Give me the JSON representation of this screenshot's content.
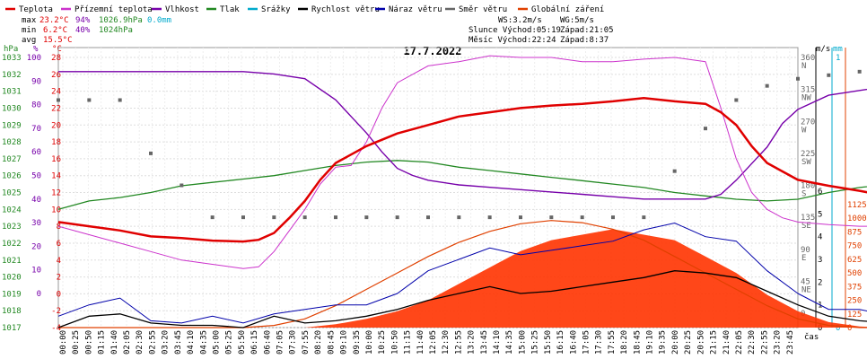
{
  "chart_data": {
    "type": "line",
    "title": "17.7.2022",
    "legend": [
      {
        "name": "Teplota",
        "color": "#e00000"
      },
      {
        "name": "Přízemní teplota",
        "color": "#cc33cc"
      },
      {
        "name": "Vlhkost",
        "color": "#7700aa"
      },
      {
        "name": "Tlak",
        "color": "#228822"
      },
      {
        "name": "Srážky",
        "color": "#00aacc"
      },
      {
        "name": "Rychlost větru",
        "color": "#000000"
      },
      {
        "name": "Náraz větru",
        "color": "#0000aa"
      },
      {
        "name": "Směr větru",
        "color": "#666666"
      },
      {
        "name": "Globální záření",
        "color": "#e04000"
      }
    ],
    "stats": {
      "max": {
        "label": "max",
        "temp": "23.2°C",
        "hum": "94%",
        "press": "1026.9hPa",
        "rain": "0.0mm"
      },
      "min": {
        "label": "min",
        "temp": "6.2°C",
        "hum": "40%",
        "press": "1024hPa"
      },
      "avg": {
        "label": "avg",
        "temp": "15.5°C"
      }
    },
    "info": {
      "ws": "WS:3.2m/s",
      "wg": "WG:5m/s",
      "sun": "Slunce Východ:05:19",
      "sun_set": "Západ:21:05",
      "moon": "Měsíc Východ:22:24",
      "moon_set": "Západ:8:37"
    },
    "axes": {
      "hpa": {
        "unit": "hPa",
        "ticks": [
          "1033",
          "1032",
          "1031",
          "1030",
          "1029",
          "1028",
          "1027",
          "1026",
          "1025",
          "1024",
          "1023",
          "1022",
          "1021",
          "1020",
          "1019",
          "1018",
          "1017"
        ]
      },
      "pct": {
        "unit": "%",
        "ticks": [
          "100",
          "90",
          "80",
          "70",
          "60",
          "50",
          "40",
          "30",
          "20",
          "10",
          "0"
        ]
      },
      "temp": {
        "unit": "°C",
        "ticks": [
          "28",
          "26",
          "24",
          "22",
          "20",
          "18",
          "16",
          "14",
          "12",
          "10",
          "8",
          "6",
          "4",
          "2",
          "0",
          "-2",
          "-4"
        ]
      },
      "wind": {
        "unit": "m/s",
        "ticks": [
          "6",
          "5",
          "4",
          "3",
          "2",
          "1",
          "0"
        ]
      },
      "rain": {
        "unit": "mm",
        "ticks": [
          "1",
          "0"
        ]
      },
      "dir": {
        "ticks": [
          "360",
          "315",
          "270",
          "225",
          "180",
          "135",
          "90",
          "45",
          "0"
        ],
        "labels": [
          "N",
          "NW",
          "W",
          "SW",
          "S",
          "SE",
          "E",
          "NE",
          ""
        ]
      },
      "rad": {
        "ticks": [
          "1125",
          "1000",
          "875",
          "750",
          "625",
          "500",
          "375",
          "250",
          "125",
          "0"
        ]
      },
      "time_label": "čas",
      "time_ticks": [
        "00:00",
        "00:25",
        "00:50",
        "01:15",
        "01:40",
        "02:05",
        "02:30",
        "02:55",
        "03:20",
        "03:45",
        "04:10",
        "04:35",
        "05:00",
        "05:25",
        "05:50",
        "06:15",
        "06:40",
        "07:05",
        "07:30",
        "07:55",
        "08:20",
        "08:45",
        "09:10",
        "09:35",
        "10:00",
        "10:25",
        "10:50",
        "11:15",
        "11:40",
        "12:05",
        "12:30",
        "12:55",
        "13:20",
        "13:45",
        "14:10",
        "14:35",
        "15:00",
        "15:25",
        "15:50",
        "16:15",
        "16:40",
        "17:05",
        "17:30",
        "17:55",
        "18:20",
        "18:45",
        "19:10",
        "19:35",
        "20:00",
        "20:25",
        "20:50",
        "21:15",
        "21:40",
        "22:05",
        "22:30",
        "22:55",
        "23:20",
        "23:45"
      ]
    },
    "x_range_hours": [
      0,
      24
    ],
    "series": {
      "temp_c": [
        [
          0,
          8.5
        ],
        [
          1,
          8.0
        ],
        [
          2,
          7.5
        ],
        [
          3,
          6.8
        ],
        [
          4,
          6.6
        ],
        [
          5,
          6.3
        ],
        [
          6,
          6.2
        ],
        [
          6.5,
          6.4
        ],
        [
          7,
          7.2
        ],
        [
          7.5,
          9
        ],
        [
          8,
          11
        ],
        [
          8.5,
          13.5
        ],
        [
          9,
          15.5
        ],
        [
          9.5,
          16.5
        ],
        [
          10,
          17.5
        ],
        [
          11,
          19
        ],
        [
          12,
          20
        ],
        [
          13,
          21
        ],
        [
          14,
          21.5
        ],
        [
          15,
          22
        ],
        [
          16,
          22.3
        ],
        [
          17,
          22.5
        ],
        [
          18,
          22.8
        ],
        [
          19,
          23.2
        ],
        [
          20,
          22.8
        ],
        [
          21,
          22.5
        ],
        [
          21.5,
          21.5
        ],
        [
          22,
          20
        ],
        [
          22.5,
          17.5
        ],
        [
          23,
          15.5
        ],
        [
          23.5,
          14.5
        ],
        [
          24,
          13.5
        ],
        [
          25,
          12.8
        ],
        [
          26,
          12.2
        ],
        [
          27,
          11.5
        ]
      ],
      "ground_temp_c": [
        [
          0,
          8
        ],
        [
          1,
          7
        ],
        [
          2,
          6
        ],
        [
          3,
          5
        ],
        [
          4,
          4
        ],
        [
          5,
          3.5
        ],
        [
          6,
          3
        ],
        [
          6.5,
          3.2
        ],
        [
          7,
          5
        ],
        [
          7.5,
          7.5
        ],
        [
          8,
          10
        ],
        [
          8.5,
          13
        ],
        [
          9,
          15
        ],
        [
          9.5,
          15.2
        ],
        [
          10,
          18
        ],
        [
          10.5,
          22
        ],
        [
          11,
          25
        ],
        [
          11.5,
          26
        ],
        [
          12,
          27
        ],
        [
          13,
          27.5
        ],
        [
          14,
          28.2
        ],
        [
          15,
          28
        ],
        [
          16,
          28
        ],
        [
          17,
          27.5
        ],
        [
          18,
          27.5
        ],
        [
          19,
          27.8
        ],
        [
          20,
          28
        ],
        [
          21,
          27.5
        ],
        [
          21.5,
          22
        ],
        [
          22,
          16
        ],
        [
          22.5,
          12
        ],
        [
          23,
          10
        ],
        [
          23.5,
          9
        ],
        [
          24,
          8.5
        ],
        [
          25,
          8.2
        ],
        [
          26,
          8
        ],
        [
          27,
          8
        ]
      ],
      "humidity_pct": [
        [
          0,
          94
        ],
        [
          1,
          94
        ],
        [
          2,
          94
        ],
        [
          3,
          94
        ],
        [
          4,
          94
        ],
        [
          5,
          94
        ],
        [
          6,
          94
        ],
        [
          7,
          93
        ],
        [
          8,
          91
        ],
        [
          9,
          82
        ],
        [
          9.5,
          75
        ],
        [
          10,
          68
        ],
        [
          10.5,
          60
        ],
        [
          11,
          53
        ],
        [
          11.5,
          50
        ],
        [
          12,
          48
        ],
        [
          13,
          46
        ],
        [
          14,
          45
        ],
        [
          15,
          44
        ],
        [
          16,
          43
        ],
        [
          17,
          42
        ],
        [
          18,
          41
        ],
        [
          19,
          40
        ],
        [
          20,
          40
        ],
        [
          21,
          40
        ],
        [
          21.5,
          42
        ],
        [
          22,
          48
        ],
        [
          22.5,
          55
        ],
        [
          23,
          62
        ],
        [
          23.5,
          72
        ],
        [
          24,
          78
        ],
        [
          25,
          84
        ],
        [
          26,
          86
        ],
        [
          27,
          88
        ]
      ],
      "pressure_hpa": [
        [
          0,
          1024.0
        ],
        [
          1,
          1024.5
        ],
        [
          2,
          1024.7
        ],
        [
          3,
          1025.0
        ],
        [
          4,
          1025.4
        ],
        [
          5,
          1025.6
        ],
        [
          6,
          1025.8
        ],
        [
          7,
          1026.0
        ],
        [
          8,
          1026.3
        ],
        [
          9,
          1026.6
        ],
        [
          10,
          1026.8
        ],
        [
          11,
          1026.9
        ],
        [
          12,
          1026.8
        ],
        [
          13,
          1026.5
        ],
        [
          14,
          1026.3
        ],
        [
          15,
          1026.1
        ],
        [
          16,
          1025.9
        ],
        [
          17,
          1025.7
        ],
        [
          18,
          1025.5
        ],
        [
          19,
          1025.3
        ],
        [
          20,
          1025.0
        ],
        [
          21,
          1024.8
        ],
        [
          22,
          1024.6
        ],
        [
          23,
          1024.5
        ],
        [
          24,
          1024.6
        ],
        [
          25,
          1025.0
        ],
        [
          26,
          1025.3
        ],
        [
          27,
          1025.5
        ]
      ],
      "wind_speed_ms": [
        [
          0,
          0
        ],
        [
          1,
          0.5
        ],
        [
          2,
          0.6
        ],
        [
          3,
          0.2
        ],
        [
          4,
          0.1
        ],
        [
          5,
          0.1
        ],
        [
          6,
          0
        ],
        [
          7,
          0.5
        ],
        [
          8,
          0.2
        ],
        [
          9,
          0.3
        ],
        [
          10,
          0.5
        ],
        [
          11,
          0.8
        ],
        [
          12,
          1.2
        ],
        [
          13,
          1.5
        ],
        [
          14,
          1.8
        ],
        [
          15,
          1.5
        ],
        [
          16,
          1.6
        ],
        [
          17,
          1.8
        ],
        [
          18,
          2.0
        ],
        [
          19,
          2.2
        ],
        [
          20,
          2.5
        ],
        [
          21,
          2.4
        ],
        [
          22,
          2.2
        ],
        [
          23,
          1.6
        ],
        [
          24,
          1.0
        ],
        [
          25,
          0.5
        ],
        [
          26,
          0.3
        ],
        [
          27,
          0.2
        ]
      ],
      "wind_gust_ms": [
        [
          0,
          0.5
        ],
        [
          1,
          1
        ],
        [
          2,
          1.3
        ],
        [
          3,
          0.3
        ],
        [
          4,
          0.2
        ],
        [
          5,
          0.5
        ],
        [
          6,
          0.2
        ],
        [
          7,
          0.6
        ],
        [
          8,
          0.8
        ],
        [
          9,
          1
        ],
        [
          10,
          1
        ],
        [
          11,
          1.5
        ],
        [
          12,
          2.5
        ],
        [
          13,
          3
        ],
        [
          14,
          3.5
        ],
        [
          15,
          3.2
        ],
        [
          16,
          3.4
        ],
        [
          17,
          3.6
        ],
        [
          18,
          3.8
        ],
        [
          19,
          4.3
        ],
        [
          20,
          4.6
        ],
        [
          21,
          4
        ],
        [
          22,
          3.8
        ],
        [
          23,
          2.5
        ],
        [
          24,
          1.5
        ],
        [
          25,
          0.8
        ],
        [
          26,
          0.8
        ],
        [
          27,
          0.5
        ]
      ],
      "wind_dir_deg": [
        [
          0,
          300
        ],
        [
          1,
          300
        ],
        [
          2,
          300
        ],
        [
          3,
          225
        ],
        [
          4,
          180
        ],
        [
          5,
          135
        ],
        [
          6,
          135
        ],
        [
          7,
          135
        ],
        [
          8,
          135
        ],
        [
          9,
          135
        ],
        [
          10,
          135
        ],
        [
          11,
          135
        ],
        [
          12,
          135
        ],
        [
          13,
          135
        ],
        [
          14,
          135
        ],
        [
          15,
          135
        ],
        [
          16,
          135
        ],
        [
          17,
          135
        ],
        [
          18,
          135
        ],
        [
          19,
          135
        ],
        [
          20,
          200
        ],
        [
          21,
          260
        ],
        [
          22,
          300
        ],
        [
          23,
          320
        ],
        [
          24,
          330
        ],
        [
          25,
          335
        ],
        [
          26,
          340
        ],
        [
          27,
          345
        ]
      ],
      "radiation_wm2": [
        [
          0,
          0
        ],
        [
          1,
          0
        ],
        [
          2,
          0
        ],
        [
          3,
          0
        ],
        [
          4,
          0
        ],
        [
          5,
          0
        ],
        [
          6,
          0
        ],
        [
          7,
          0
        ],
        [
          8,
          0
        ],
        [
          9,
          30
        ],
        [
          10,
          80
        ],
        [
          11,
          150
        ],
        [
          12,
          250
        ],
        [
          13,
          400
        ],
        [
          14,
          550
        ],
        [
          15,
          700
        ],
        [
          16,
          800
        ],
        [
          17,
          850
        ],
        [
          18,
          900
        ],
        [
          19,
          850
        ],
        [
          20,
          800
        ],
        [
          21,
          650
        ],
        [
          22,
          500
        ],
        [
          23,
          300
        ],
        [
          24,
          150
        ],
        [
          25,
          50
        ],
        [
          26,
          10
        ],
        [
          27,
          0
        ]
      ],
      "radiation_clear_sky_wm2": [
        [
          0,
          0
        ],
        [
          1,
          0
        ],
        [
          2,
          0
        ],
        [
          3,
          0
        ],
        [
          4,
          0
        ],
        [
          5,
          0
        ],
        [
          6,
          0
        ],
        [
          7,
          20
        ],
        [
          8,
          80
        ],
        [
          9,
          200
        ],
        [
          10,
          350
        ],
        [
          11,
          500
        ],
        [
          12,
          650
        ],
        [
          13,
          780
        ],
        [
          14,
          880
        ],
        [
          15,
          950
        ],
        [
          16,
          980
        ],
        [
          17,
          960
        ],
        [
          18,
          900
        ],
        [
          19,
          800
        ],
        [
          20,
          650
        ],
        [
          21,
          500
        ],
        [
          22,
          350
        ],
        [
          23,
          200
        ],
        [
          24,
          80
        ],
        [
          25,
          20
        ],
        [
          26,
          0
        ],
        [
          27,
          0
        ]
      ]
    }
  }
}
